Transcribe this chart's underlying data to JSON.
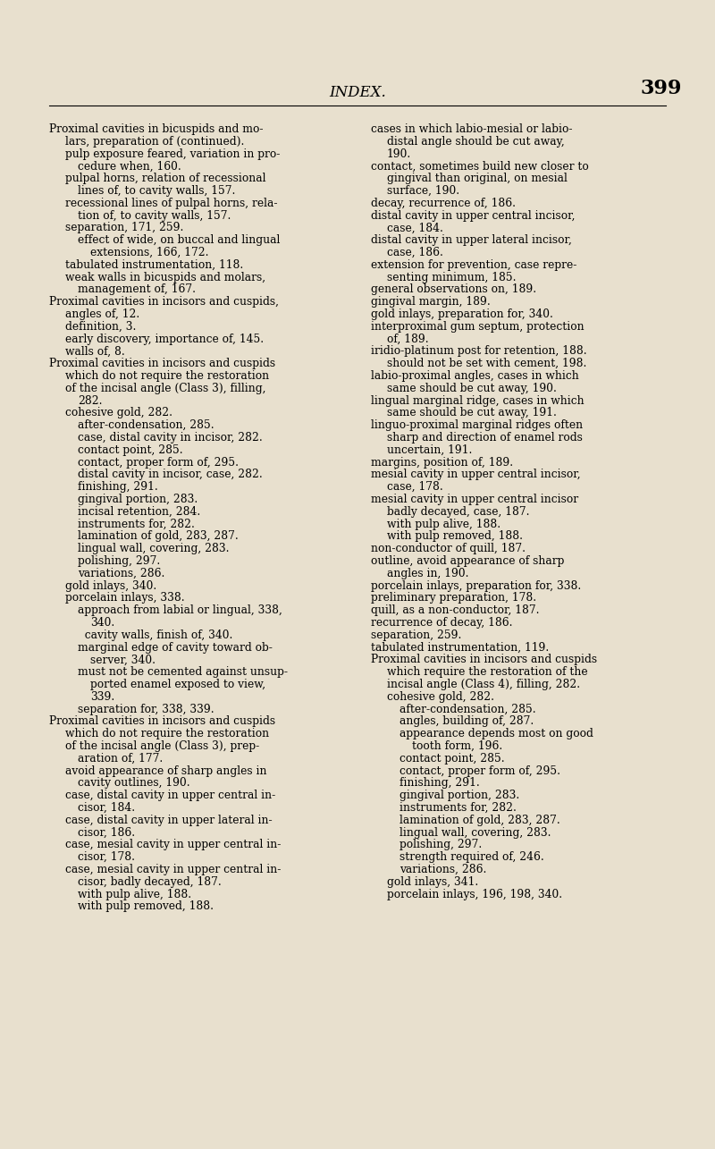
{
  "background_color": "#e8e0ce",
  "page_width": 8.0,
  "page_height": 12.85,
  "dpi": 100,
  "header_title": "INDEX.",
  "header_page": "399",
  "col1_lines": [
    {
      "text": "Proximal cavities in bicuspids and mo-",
      "indent": 0
    },
    {
      "text": "lars, preparation of (continued).",
      "indent": 1
    },
    {
      "text": "pulp exposure feared, variation in pro-",
      "indent": 1
    },
    {
      "text": "cedure when, 160.",
      "indent": 2
    },
    {
      "text": "pulpal horns, relation of recessional",
      "indent": 1
    },
    {
      "text": "lines of, to cavity walls, 157.",
      "indent": 2
    },
    {
      "text": "recessional lines of pulpal horns, rela-",
      "indent": 1
    },
    {
      "text": "tion of, to cavity walls, 157.",
      "indent": 2
    },
    {
      "text": "separation, 171, 259.",
      "indent": 1
    },
    {
      "text": "effect of wide, on buccal and lingual",
      "indent": 2
    },
    {
      "text": "extensions, 166, 172.",
      "indent": 3
    },
    {
      "text": "tabulated instrumentation, 118.",
      "indent": 1
    },
    {
      "text": "weak walls in bicuspids and molars,",
      "indent": 1
    },
    {
      "text": "management of, 167.",
      "indent": 2
    },
    {
      "text": "Proximal cavities in incisors and cuspids,",
      "indent": 0
    },
    {
      "text": "angles of, 12.",
      "indent": 1
    },
    {
      "text": "definition, 3.",
      "indent": 1
    },
    {
      "text": "early discovery, importance of, 145.",
      "indent": 1
    },
    {
      "text": "walls of, 8.",
      "indent": 1
    },
    {
      "text": "Proximal cavities in incisors and cuspids",
      "indent": 0
    },
    {
      "text": "which do not require the restoration",
      "indent": 1
    },
    {
      "text": "of the incisal angle (Class 3), filling,",
      "indent": 1
    },
    {
      "text": "282.",
      "indent": 2
    },
    {
      "text": "cohesive gold, 282.",
      "indent": 1
    },
    {
      "text": "after-condensation, 285.",
      "indent": 2
    },
    {
      "text": "case, distal cavity in incisor, 282.",
      "indent": 2
    },
    {
      "text": "contact point, 285.",
      "indent": 2
    },
    {
      "text": "contact, proper form of, 295.",
      "indent": 2
    },
    {
      "text": "distal cavity in incisor, case, 282.",
      "indent": 2
    },
    {
      "text": "finishing, 291.",
      "indent": 2
    },
    {
      "text": "gingival portion, 283.",
      "indent": 2
    },
    {
      "text": "incisal retention, 284.",
      "indent": 2
    },
    {
      "text": "instruments for, 282.",
      "indent": 2
    },
    {
      "text": "lamination of gold, 283, 287.",
      "indent": 2
    },
    {
      "text": "lingual wall, covering, 283.",
      "indent": 2
    },
    {
      "text": "polishing, 297.",
      "indent": 2
    },
    {
      "text": "variations, 286.",
      "indent": 2
    },
    {
      "text": "gold inlays, 340.",
      "indent": 1
    },
    {
      "text": "porcelain inlays, 338.",
      "indent": 1
    },
    {
      "text": "approach from labial or lingual, 338,",
      "indent": 2
    },
    {
      "text": "340.",
      "indent": 3
    },
    {
      "text": "  cavity walls, finish of, 340.",
      "indent": 2
    },
    {
      "text": "marginal edge of cavity toward ob-",
      "indent": 2
    },
    {
      "text": "server, 340.",
      "indent": 3
    },
    {
      "text": "must not be cemented against unsup-",
      "indent": 2
    },
    {
      "text": "ported enamel exposed to view,",
      "indent": 3
    },
    {
      "text": "339.",
      "indent": 3
    },
    {
      "text": "separation for, 338, 339.",
      "indent": 2
    },
    {
      "text": "Proximal cavities in incisors and cuspids",
      "indent": 0
    },
    {
      "text": "which do not require the restoration",
      "indent": 1
    },
    {
      "text": "of the incisal angle (Class 3), prep-",
      "indent": 1
    },
    {
      "text": "aration of, 177.",
      "indent": 2
    },
    {
      "text": "avoid appearance of sharp angles in",
      "indent": 1
    },
    {
      "text": "cavity outlines, 190.",
      "indent": 2
    },
    {
      "text": "case, distal cavity in upper central in-",
      "indent": 1
    },
    {
      "text": "cisor, 184.",
      "indent": 2
    },
    {
      "text": "case, distal cavity in upper lateral in-",
      "indent": 1
    },
    {
      "text": "cisor, 186.",
      "indent": 2
    },
    {
      "text": "case, mesial cavity in upper central in-",
      "indent": 1
    },
    {
      "text": "cisor, 178.",
      "indent": 2
    },
    {
      "text": "case, mesial cavity in upper central in-",
      "indent": 1
    },
    {
      "text": "cisor, badly decayed, 187.",
      "indent": 2
    },
    {
      "text": "with pulp alive, 188.",
      "indent": 2
    },
    {
      "text": "with pulp removed, 188.",
      "indent": 2
    }
  ],
  "col2_lines": [
    {
      "text": "cases in which labio-mesial or labio-",
      "indent": 0
    },
    {
      "text": "distal angle should be cut away,",
      "indent": 1
    },
    {
      "text": "190.",
      "indent": 1
    },
    {
      "text": "contact, sometimes build new closer to",
      "indent": 0
    },
    {
      "text": "gingival than original, on mesial",
      "indent": 1
    },
    {
      "text": "surface, 190.",
      "indent": 1
    },
    {
      "text": "decay, recurrence of, 186.",
      "indent": 0
    },
    {
      "text": "distal cavity in upper central incisor,",
      "indent": 0
    },
    {
      "text": "case, 184.",
      "indent": 1
    },
    {
      "text": "distal cavity in upper lateral incisor,",
      "indent": 0
    },
    {
      "text": "case, 186.",
      "indent": 1
    },
    {
      "text": "extension for prevention, case repre-",
      "indent": 0
    },
    {
      "text": "senting minimum, 185.",
      "indent": 1
    },
    {
      "text": "general observations on, 189.",
      "indent": 0
    },
    {
      "text": "gingival margin, 189.",
      "indent": 0
    },
    {
      "text": "gold inlays, preparation for, 340.",
      "indent": 0
    },
    {
      "text": "interproximal gum septum, protection",
      "indent": 0
    },
    {
      "text": "of, 189.",
      "indent": 1
    },
    {
      "text": "iridio-platinum post for retention, 188.",
      "indent": 0
    },
    {
      "text": "should not be set with cement, 198.",
      "indent": 1
    },
    {
      "text": "labio-proximal angles, cases in which",
      "indent": 0
    },
    {
      "text": "same should be cut away, 190.",
      "indent": 1
    },
    {
      "text": "lingual marginal ridge, cases in which",
      "indent": 0
    },
    {
      "text": "same should be cut away, 191.",
      "indent": 1
    },
    {
      "text": "linguo-proximal marginal ridges often",
      "indent": 0
    },
    {
      "text": "sharp and direction of enamel rods",
      "indent": 1
    },
    {
      "text": "uncertain, 191.",
      "indent": 1
    },
    {
      "text": "margins, position of, 189.",
      "indent": 0
    },
    {
      "text": "mesial cavity in upper central incisor,",
      "indent": 0
    },
    {
      "text": "case, 178.",
      "indent": 1
    },
    {
      "text": "mesial cavity in upper central incisor",
      "indent": 0
    },
    {
      "text": "badly decayed, case, 187.",
      "indent": 1
    },
    {
      "text": "with pulp alive, 188.",
      "indent": 1
    },
    {
      "text": "with pulp removed, 188.",
      "indent": 1
    },
    {
      "text": "non-conductor of quill, 187.",
      "indent": 0
    },
    {
      "text": "outline, avoid appearance of sharp",
      "indent": 0
    },
    {
      "text": "angles in, 190.",
      "indent": 1
    },
    {
      "text": "porcelain inlays, preparation for, 338.",
      "indent": 0
    },
    {
      "text": "preliminary preparation, 178.",
      "indent": 0
    },
    {
      "text": "quill, as a non-conductor, 187.",
      "indent": 0
    },
    {
      "text": "recurrence of decay, 186.",
      "indent": 0
    },
    {
      "text": "separation, 259.",
      "indent": 0
    },
    {
      "text": "tabulated instrumentation, 119.",
      "indent": 0
    },
    {
      "text": "Proximal cavities in incisors and cuspids",
      "indent": 0
    },
    {
      "text": "which require the restoration of the",
      "indent": 1
    },
    {
      "text": "incisal angle (Class 4), filling, 282.",
      "indent": 1
    },
    {
      "text": "cohesive gold, 282.",
      "indent": 1
    },
    {
      "text": "after-condensation, 285.",
      "indent": 2
    },
    {
      "text": "angles, building of, 287.",
      "indent": 2
    },
    {
      "text": "appearance depends most on good",
      "indent": 2
    },
    {
      "text": "tooth form, 196.",
      "indent": 3
    },
    {
      "text": "contact point, 285.",
      "indent": 2
    },
    {
      "text": "contact, proper form of, 295.",
      "indent": 2
    },
    {
      "text": "finishing, 291.",
      "indent": 2
    },
    {
      "text": "gingival portion, 283.",
      "indent": 2
    },
    {
      "text": "instruments for, 282.",
      "indent": 2
    },
    {
      "text": "lamination of gold, 283, 287.",
      "indent": 2
    },
    {
      "text": "lingual wall, covering, 283.",
      "indent": 2
    },
    {
      "text": "polishing, 297.",
      "indent": 2
    },
    {
      "text": "strength required of, 246.",
      "indent": 2
    },
    {
      "text": "variations, 286.",
      "indent": 2
    },
    {
      "text": "gold inlays, 341.",
      "indent": 1
    },
    {
      "text": "porcelain inlays, 196, 198, 340.",
      "indent": 1
    }
  ]
}
